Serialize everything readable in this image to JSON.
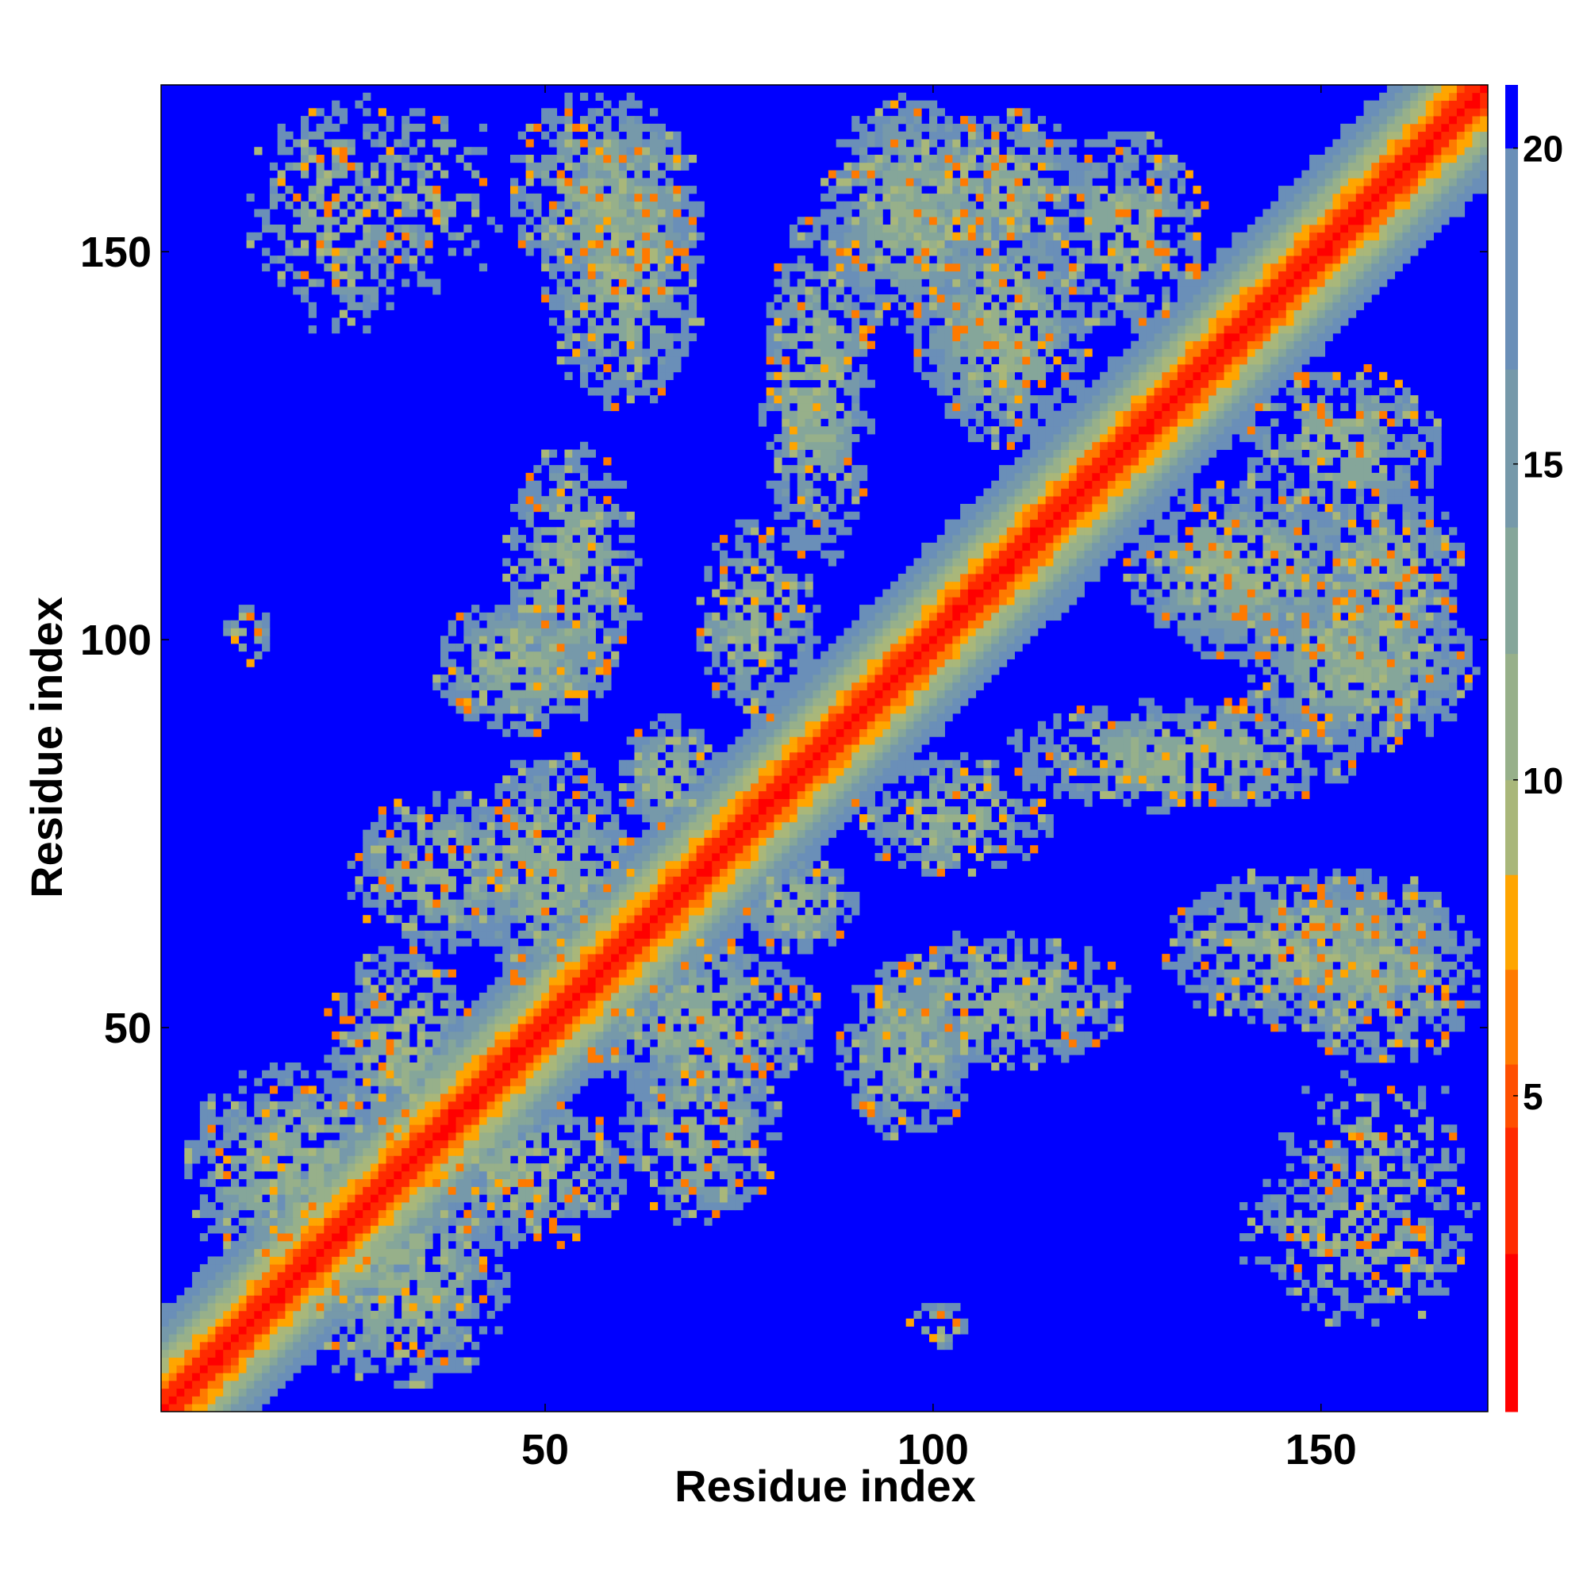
{
  "chart_data": {
    "type": "heatmap",
    "title": "",
    "xlabel": "Residue index",
    "ylabel": "Residue index",
    "xlim": [
      1,
      171
    ],
    "ylim": [
      1,
      171
    ],
    "x_ticks": [
      50,
      100,
      150
    ],
    "y_ticks": [
      50,
      100,
      150
    ],
    "n_residues": 171,
    "colorbar": {
      "ticks": [
        5,
        10,
        15,
        20
      ],
      "range": [
        0,
        21
      ],
      "levels": [
        {
          "max": 2.5,
          "color": "#ff0000"
        },
        {
          "max": 4.5,
          "color": "#ff2a00"
        },
        {
          "max": 5.5,
          "color": "#ff4f00"
        },
        {
          "max": 7.0,
          "color": "#ff7a00"
        },
        {
          "max": 8.5,
          "color": "#ffa500"
        },
        {
          "max": 10.0,
          "color": "#a9b77a"
        },
        {
          "max": 12.0,
          "color": "#97b08a"
        },
        {
          "max": 14.0,
          "color": "#85a69a"
        },
        {
          "max": 16.5,
          "color": "#7699aa"
        },
        {
          "max": 20.0,
          "color": "#6a8fb8"
        },
        {
          "max": 99,
          "color": "#0000ff"
        }
      ]
    },
    "diagonal_band": {
      "note_halfwidth_residues": 13
    },
    "contact_regions": [
      {
        "i": [
          4,
          32
        ],
        "j": [
          18,
          45
        ],
        "density": 0.55
      },
      {
        "i": [
          22,
          42
        ],
        "j": [
          35,
          60
        ],
        "density": 0.55
      },
      {
        "i": [
          25,
          48
        ],
        "j": [
          60,
          80
        ],
        "density": 0.5
      },
      {
        "i": [
          40,
          62
        ],
        "j": [
          55,
          85
        ],
        "density": 0.6
      },
      {
        "i": [
          60,
          72
        ],
        "j": [
          75,
          90
        ],
        "density": 0.65
      },
      {
        "i": [
          36,
          58
        ],
        "j": [
          88,
          105
        ],
        "density": 0.55
      },
      {
        "i": [
          8,
          15
        ],
        "j": [
          97,
          104
        ],
        "density": 0.35
      },
      {
        "i": [
          45,
          62
        ],
        "j": [
          92,
          125
        ],
        "density": 0.55
      },
      {
        "i": [
          70,
          85
        ],
        "j": [
          90,
          115
        ],
        "density": 0.5
      },
      {
        "i": [
          78,
          92
        ],
        "j": [
          110,
          155
        ],
        "density": 0.55
      },
      {
        "i": [
          86,
          108
        ],
        "j": [
          140,
          170
        ],
        "density": 0.6
      },
      {
        "i": [
          98,
          120
        ],
        "j": [
          125,
          155
        ],
        "density": 0.6
      },
      {
        "i": [
          50,
          70
        ],
        "j": [
          130,
          165
        ],
        "density": 0.55
      },
      {
        "i": [
          12,
          35
        ],
        "j": [
          140,
          170
        ],
        "density": 0.3
      },
      {
        "i": [
          140,
          165
        ],
        "j": [
          115,
          135
        ],
        "density": 0.5
      },
      {
        "i": [
          148,
          168
        ],
        "j": [
          95,
          120
        ],
        "density": 0.5
      },
      {
        "i": [
          145,
          170
        ],
        "j": [
          45,
          70
        ],
        "density": 0.5
      },
      {
        "i": [
          145,
          170
        ],
        "j": [
          25,
          45
        ],
        "density": 0.15
      }
    ]
  }
}
